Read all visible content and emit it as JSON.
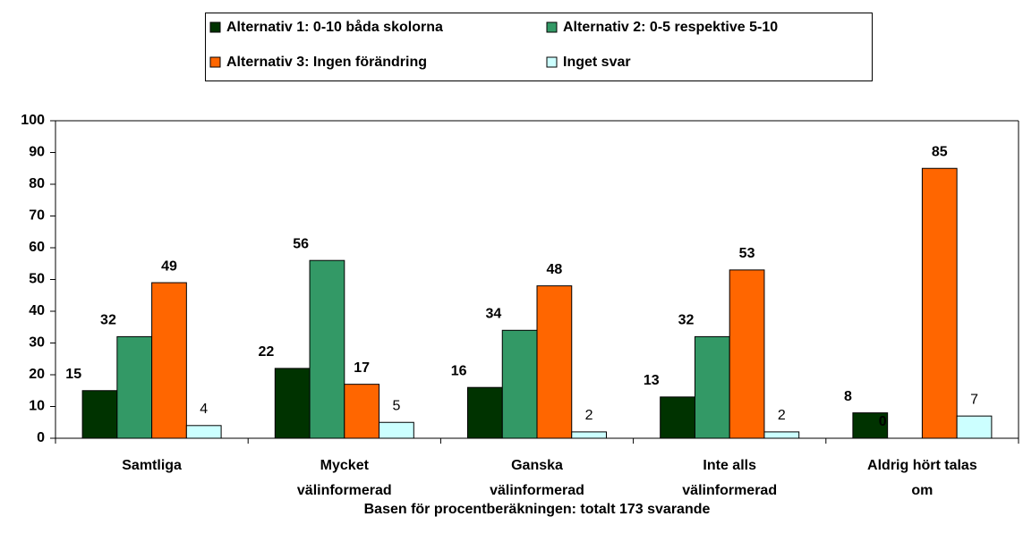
{
  "chart_data": {
    "type": "bar",
    "x_label": "Basen för procentberäkningen: totalt 173 svarande",
    "categories": [
      "Samtliga",
      "Mycket välinformerad",
      "Ganska välinformerad",
      "Inte alls välinformerad",
      "Aldrig hört talas om"
    ],
    "series": [
      {
        "name": "Alternativ 1: 0-10 båda skolorna",
        "color": "#003300",
        "values": [
          15,
          22,
          16,
          13,
          8
        ]
      },
      {
        "name": "Alternativ 2: 0-5 respektive 5-10",
        "color": "#339966",
        "values": [
          32,
          56,
          34,
          32,
          0
        ]
      },
      {
        "name": "Alternativ 3: Ingen förändring",
        "color": "#ff6600",
        "values": [
          49,
          17,
          48,
          53,
          85
        ]
      },
      {
        "name": "Inget svar",
        "color": "#ccffff",
        "values": [
          4,
          5,
          2,
          2,
          7
        ]
      }
    ],
    "ylim": [
      0,
      100
    ],
    "yticks": [
      0,
      10,
      20,
      30,
      40,
      50,
      60,
      70,
      80,
      90,
      100
    ],
    "grid": false,
    "legend": "top"
  }
}
